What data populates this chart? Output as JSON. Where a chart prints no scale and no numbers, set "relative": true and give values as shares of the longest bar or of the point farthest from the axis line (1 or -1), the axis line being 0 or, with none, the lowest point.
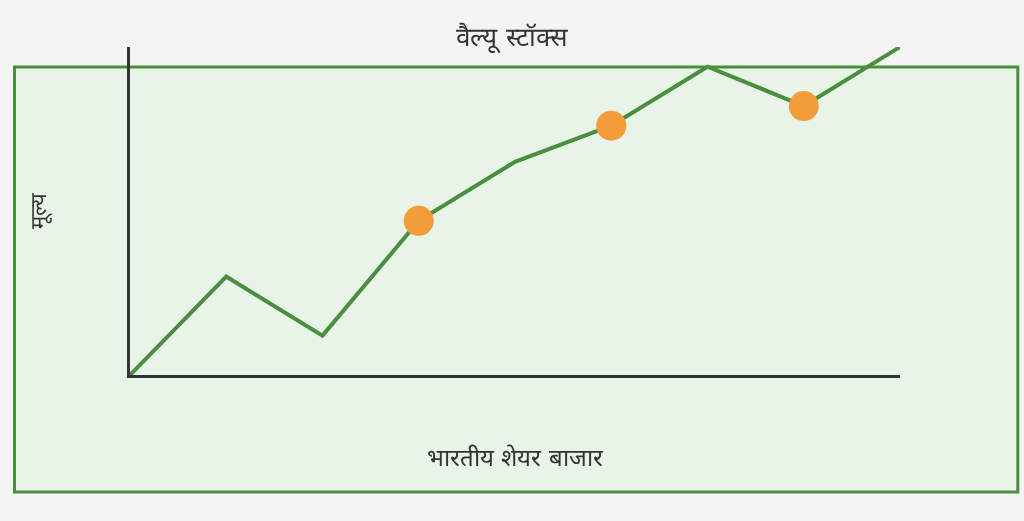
{
  "chart_data": {
    "type": "line",
    "title": "वैल्यू स्टॉक्स",
    "xlabel": "भारतीय शेयर बाजार",
    "ylabel": "मूल्य",
    "relative": true,
    "categories": [
      null,
      null,
      null,
      null,
      null,
      null,
      null,
      null,
      null
    ],
    "series": [
      {
        "color": "#4a8f3e",
        "line_style": "solid",
        "colors": [
          null,
          null,
          null,
          "#f29d38",
          null,
          "#f29d38",
          null,
          "#f29d38",
          null
        ],
        "values": [
          0,
          0.3,
          0.12,
          0.47,
          0.65,
          0.76,
          0.94,
          0.82,
          1.0
        ]
      }
    ]
  }
}
